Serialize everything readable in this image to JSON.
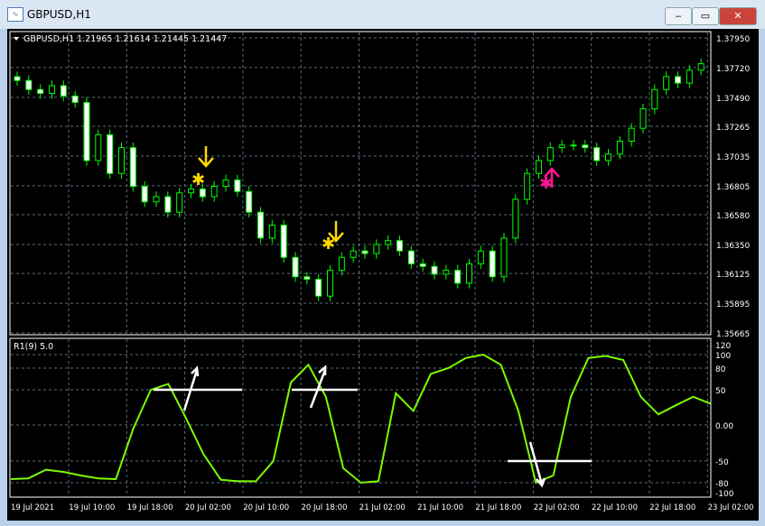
{
  "window": {
    "title": "GBPUSD,H1",
    "minimize": "‒",
    "maximize": "▭",
    "close": "✕"
  },
  "chart": {
    "header": "GBPUSD,H1  1.21965 1.21614 1.21445 1.21447",
    "symbol_dropdown_icon": "triangle-down-icon"
  },
  "indicator": {
    "label": "R1(9) 5.0"
  },
  "colors": {
    "bull": "#00ff00",
    "bear": "#ffffff",
    "oscillator": "#7cfc00",
    "buy_signal": "#ffd700",
    "sell_signal": "#ff1493",
    "grid": "#5a6b80"
  },
  "chart_data": {
    "type": "candlestick",
    "price_axis": [
      "1.37950",
      "1.37720",
      "1.37490",
      "1.37265",
      "1.37035",
      "1.36805",
      "1.36580",
      "1.36350",
      "1.36125",
      "1.35895",
      "1.35665"
    ],
    "ylim": [
      1.35665,
      1.3795
    ],
    "time_axis": [
      "19 Jul 2021",
      "19 Jul 10:00",
      "19 Jul 18:00",
      "20 Jul 02:00",
      "20 Jul 10:00",
      "20 Jul 18:00",
      "21 Jul 02:00",
      "21 Jul 10:00",
      "21 Jul 18:00",
      "22 Jul 02:00",
      "22 Jul 10:00",
      "22 Jul 18:00",
      "23 Jul 02:00"
    ],
    "closes": [
      1.3762,
      1.3755,
      1.3752,
      1.3758,
      1.375,
      1.3745,
      1.37,
      1.372,
      1.369,
      1.371,
      1.368,
      1.3668,
      1.3672,
      1.366,
      1.3675,
      1.3678,
      1.3672,
      1.368,
      1.3685,
      1.3676,
      1.366,
      1.364,
      1.365,
      1.3625,
      1.361,
      1.3608,
      1.3595,
      1.3615,
      1.3625,
      1.363,
      1.3628,
      1.3635,
      1.3638,
      1.363,
      1.362,
      1.3618,
      1.3612,
      1.3615,
      1.3605,
      1.362,
      1.363,
      1.361,
      1.364,
      1.367,
      1.369,
      1.37,
      1.371,
      1.3712,
      1.3712,
      1.371,
      1.37,
      1.3705,
      1.3715,
      1.3725,
      1.374,
      1.3755,
      1.3765,
      1.376,
      1.377,
      1.3775
    ],
    "indicator_axis": [
      "120",
      "100",
      "80",
      "50",
      "0.00",
      "-50",
      "-80",
      "-100"
    ],
    "indicator_levels": [
      120,
      100,
      80,
      50,
      0,
      -50,
      -80,
      -100
    ],
    "indicator_values": [
      -75,
      -74,
      -62,
      -65,
      -70,
      -74,
      -75,
      -5,
      50,
      58,
      10,
      -40,
      -76,
      -78,
      -78,
      -50,
      60,
      85,
      40,
      -60,
      -80,
      -78,
      45,
      20,
      72,
      80,
      95,
      100,
      85,
      20,
      -80,
      -70,
      40,
      95,
      98,
      92,
      40,
      15,
      28,
      40,
      30
    ]
  }
}
